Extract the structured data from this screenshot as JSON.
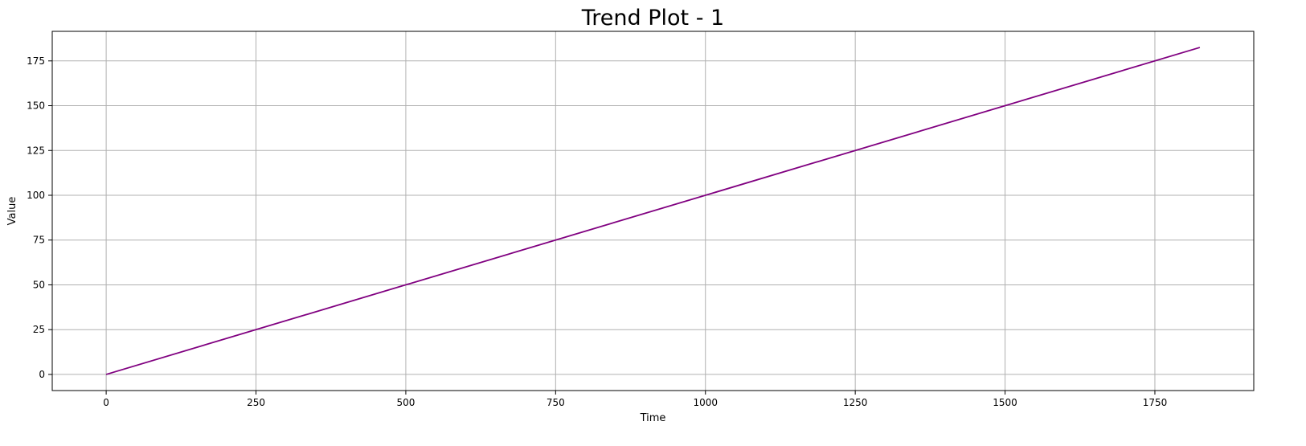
{
  "chart_data": {
    "type": "line",
    "title": "Trend Plot - 1",
    "xlabel": "Time",
    "ylabel": "Value",
    "xlim": [
      -90,
      1915
    ],
    "ylim": [
      -9,
      191.5
    ],
    "xticks": [
      0,
      250,
      500,
      750,
      1000,
      1250,
      1500,
      1750
    ],
    "yticks": [
      0,
      25,
      50,
      75,
      100,
      125,
      150,
      175
    ],
    "grid": true,
    "series": [
      {
        "color": "#800080",
        "x": [
          0,
          1825
        ],
        "y": [
          0,
          182.5
        ]
      }
    ]
  }
}
